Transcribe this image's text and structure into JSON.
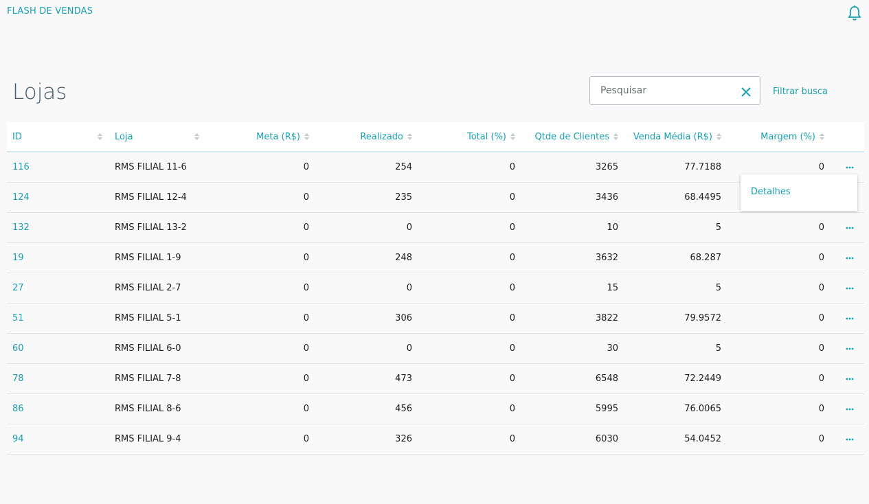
{
  "header": {
    "title": "FLASH DE VENDAS"
  },
  "page": {
    "title": "Lojas"
  },
  "search": {
    "placeholder": "Pesquisar",
    "filter_link": "Filtrar busca"
  },
  "table": {
    "columns": [
      "ID",
      "Loja",
      "Meta (R$)",
      "Realizado",
      "Total (%)",
      "Qtde de Clientes",
      "Venda Média (R$)",
      "Margem (%)"
    ],
    "rows": [
      [
        116,
        "RMS FILIAL 11-6",
        0,
        254,
        0,
        3265,
        77.7188,
        0
      ],
      [
        124,
        "RMS FILIAL 12-4",
        0,
        235,
        0,
        3436,
        68.4495,
        null
      ],
      [
        132,
        "RMS FILIAL 13-2",
        0,
        0,
        0,
        10,
        5,
        0
      ],
      [
        19,
        "RMS FILIAL 1-9",
        0,
        248,
        0,
        3632,
        68.287,
        0
      ],
      [
        27,
        "RMS FILIAL 2-7",
        0,
        0,
        0,
        15,
        5,
        0
      ],
      [
        51,
        "RMS FILIAL 5-1",
        0,
        306,
        0,
        3822,
        79.9572,
        0
      ],
      [
        60,
        "RMS FILIAL 6-0",
        0,
        0,
        0,
        30,
        5,
        0
      ],
      [
        78,
        "RMS FILIAL 7-8",
        0,
        473,
        0,
        6548,
        72.2449,
        0
      ],
      [
        86,
        "RMS FILIAL 8-6",
        0,
        456,
        0,
        5995,
        76.0065,
        0
      ],
      [
        94,
        "RMS FILIAL 9-4",
        0,
        326,
        0,
        6030,
        54.0452,
        0
      ]
    ]
  },
  "row_menu": {
    "items": [
      "Detalhes"
    ]
  }
}
